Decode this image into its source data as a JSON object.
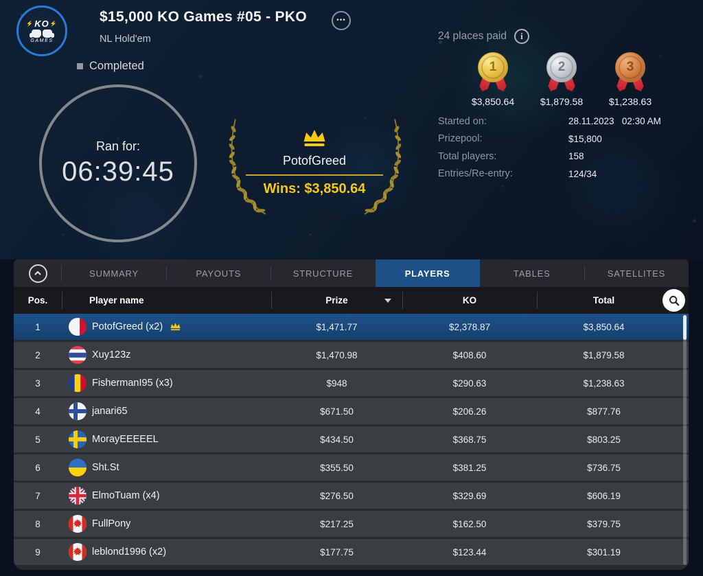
{
  "brand": {
    "logo_top": "KO",
    "logo_bottom": "GAMES"
  },
  "icons": {
    "ellipsis": "•••",
    "info": "i",
    "bolt": "⚡"
  },
  "header": {
    "title": "$15,000 KO Games #05 - PKO",
    "game_type": "NL Hold'em",
    "status": "Completed"
  },
  "timer": {
    "label": "Ran for:",
    "value": "06:39:45"
  },
  "winner": {
    "name": "PotofGreed",
    "wins": "Wins: $3,850.64"
  },
  "payout_summary": {
    "places_paid": "24 places paid",
    "medals": [
      {
        "place": "1",
        "metal": "gold",
        "prize": "$3,850.64"
      },
      {
        "place": "2",
        "metal": "silver",
        "prize": "$1,879.58"
      },
      {
        "place": "3",
        "metal": "bronze",
        "prize": "$1,238.63"
      }
    ]
  },
  "details": [
    {
      "label": "Started on:",
      "value": "28.11.2023   02:30 AM"
    },
    {
      "label": "Prizepool:",
      "value": "$15,800"
    },
    {
      "label": "Total players:",
      "value": "158"
    },
    {
      "label": "Entries/Re-entry:",
      "value": "124/34"
    }
  ],
  "tabs": [
    {
      "label": "SUMMARY",
      "active": false
    },
    {
      "label": "PAYOUTS",
      "active": false
    },
    {
      "label": "STRUCTURE",
      "active": false
    },
    {
      "label": "PLAYERS",
      "active": true
    },
    {
      "label": "TABLES",
      "active": false
    },
    {
      "label": "SATELLITES",
      "active": false
    }
  ],
  "players_table": {
    "columns": {
      "pos": "Pos.",
      "player": "Player name",
      "prize": "Prize",
      "ko": "KO",
      "total": "Total"
    },
    "rows": [
      {
        "pos": "1",
        "flag": "malta",
        "name": "PotofGreed (x2)",
        "winner": true,
        "selected": true,
        "prize": "$1,471.77",
        "ko": "$2,378.87",
        "total": "$3,850.64"
      },
      {
        "pos": "2",
        "flag": "thailand",
        "name": "Xuy123z",
        "winner": false,
        "selected": false,
        "prize": "$1,470.98",
        "ko": "$408.60",
        "total": "$1,879.58"
      },
      {
        "pos": "3",
        "flag": "romania",
        "name": "FishermanI95 (x3)",
        "winner": false,
        "selected": false,
        "prize": "$948",
        "ko": "$290.63",
        "total": "$1,238.63"
      },
      {
        "pos": "4",
        "flag": "finland",
        "name": "janari65",
        "winner": false,
        "selected": false,
        "prize": "$671.50",
        "ko": "$206.26",
        "total": "$877.76"
      },
      {
        "pos": "5",
        "flag": "sweden",
        "name": "MorayEEEEEL",
        "winner": false,
        "selected": false,
        "prize": "$434.50",
        "ko": "$368.75",
        "total": "$803.25"
      },
      {
        "pos": "6",
        "flag": "ukraine",
        "name": "Sht.St",
        "winner": false,
        "selected": false,
        "prize": "$355.50",
        "ko": "$381.25",
        "total": "$736.75"
      },
      {
        "pos": "7",
        "flag": "uk",
        "name": "ElmoTuam (x4)",
        "winner": false,
        "selected": false,
        "prize": "$276.50",
        "ko": "$329.69",
        "total": "$606.19"
      },
      {
        "pos": "8",
        "flag": "canada",
        "name": "FullPony",
        "winner": false,
        "selected": false,
        "prize": "$217.25",
        "ko": "$162.50",
        "total": "$379.75"
      },
      {
        "pos": "9",
        "flag": "canada",
        "name": "leblond1996 (x2)",
        "winner": false,
        "selected": false,
        "prize": "$177.75",
        "ko": "$123.44",
        "total": "$301.19"
      }
    ]
  },
  "colors": {
    "accent_blue": "#1d5086",
    "gold": "#f6c916",
    "selected_row": "#1a4c80",
    "ribbon_red": "#c92430"
  }
}
